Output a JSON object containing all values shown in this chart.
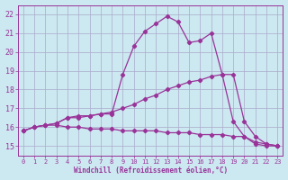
{
  "xlabel": "Windchill (Refroidissement éolien,°C)",
  "background_color": "#cce8f0",
  "grid_color": "#aaaacc",
  "line_color": "#993399",
  "xlim": [
    -0.5,
    23.5
  ],
  "ylim": [
    14.5,
    22.5
  ],
  "xticks": [
    0,
    1,
    2,
    3,
    4,
    5,
    6,
    7,
    8,
    9,
    10,
    11,
    12,
    13,
    14,
    15,
    16,
    17,
    18,
    19,
    20,
    21,
    22,
    23
  ],
  "yticks": [
    15,
    16,
    17,
    18,
    19,
    20,
    21,
    22
  ],
  "line1_x": [
    0,
    1,
    2,
    3,
    4,
    5,
    6,
    7,
    8,
    9,
    10,
    11,
    12,
    13,
    14,
    15,
    16,
    17,
    18,
    19,
    20,
    21,
    22,
    23
  ],
  "line1_y": [
    15.8,
    16.0,
    16.1,
    16.2,
    16.5,
    16.6,
    16.6,
    16.7,
    16.7,
    18.8,
    20.3,
    21.1,
    21.5,
    21.9,
    21.6,
    20.5,
    20.6,
    21.0,
    18.8,
    16.3,
    15.5,
    15.1,
    15.0,
    15.0
  ],
  "line2_x": [
    0,
    1,
    2,
    3,
    4,
    5,
    6,
    7,
    8,
    9,
    10,
    11,
    12,
    13,
    14,
    15,
    16,
    17,
    18,
    19,
    20,
    21,
    22,
    23
  ],
  "line2_y": [
    15.8,
    16.0,
    16.1,
    16.1,
    16.0,
    16.0,
    15.9,
    15.9,
    15.9,
    15.8,
    15.8,
    15.8,
    15.8,
    15.7,
    15.7,
    15.7,
    15.6,
    15.6,
    15.6,
    15.5,
    15.5,
    15.2,
    15.1,
    15.0
  ],
  "line3_x": [
    0,
    1,
    2,
    3,
    4,
    5,
    6,
    7,
    8,
    9,
    10,
    11,
    12,
    13,
    14,
    15,
    16,
    17,
    18,
    19,
    20,
    21,
    22,
    23
  ],
  "line3_y": [
    15.8,
    16.0,
    16.1,
    16.2,
    16.5,
    16.5,
    16.6,
    16.7,
    16.8,
    17.0,
    17.2,
    17.5,
    17.7,
    18.0,
    18.2,
    18.4,
    18.5,
    18.7,
    18.8,
    18.8,
    16.3,
    15.5,
    15.1,
    15.0
  ]
}
